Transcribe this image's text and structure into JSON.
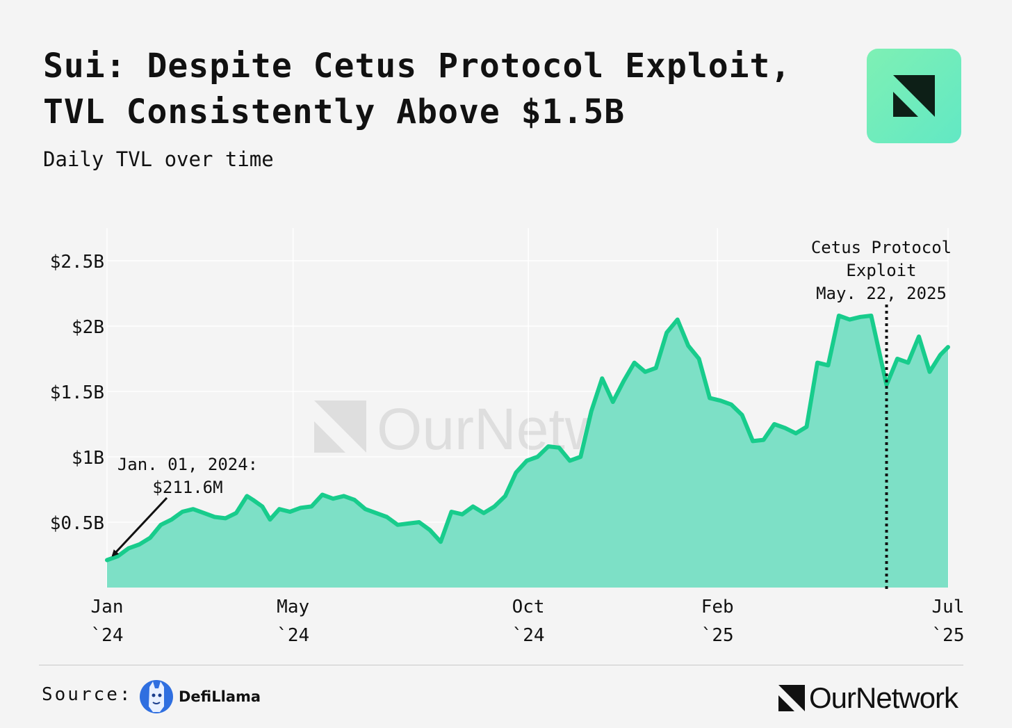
{
  "header": {
    "title_line1": "Sui: Despite Cetus Protocol Exploit,",
    "title_line2": "TVL Consistently Above $1.5B",
    "subtitle": "Daily TVL over time"
  },
  "footer": {
    "source_label": "Source:",
    "source_name": "DefiLlama",
    "brand_name": "OurNetwork"
  },
  "watermark": "OurNetwork",
  "colors": {
    "series_line": "#18cc8c",
    "series_fill": "#7de0c6",
    "background": "#f4f4f4",
    "grid": "#ffffff",
    "text": "#111111"
  },
  "chart_data": {
    "type": "area",
    "title": "Sui: Despite Cetus Protocol Exploit, TVL Consistently Above $1.5B",
    "subtitle": "Daily TVL over time",
    "xlabel": "",
    "ylabel": "",
    "x_range": [
      "2024-01-01",
      "2025-07-01"
    ],
    "ylim": [
      0,
      2.75
    ],
    "grid": true,
    "legend": "none",
    "x_ticks": [
      {
        "date": "2024-01-01",
        "line1": "Jan",
        "line2": "`24"
      },
      {
        "date": "2024-05-01",
        "line1": "May",
        "line2": "`24"
      },
      {
        "date": "2024-10-01",
        "line1": "Oct",
        "line2": "`24"
      },
      {
        "date": "2025-02-01",
        "line1": "Feb",
        "line2": "`25"
      },
      {
        "date": "2025-07-01",
        "line1": "Jul",
        "line2": "`25"
      }
    ],
    "y_ticks": [
      {
        "value": 0.5,
        "label": "$0.5B"
      },
      {
        "value": 1.0,
        "label": "$1B"
      },
      {
        "value": 1.5,
        "label": "$1.5B"
      },
      {
        "value": 2.0,
        "label": "$2B"
      },
      {
        "value": 2.5,
        "label": "$2.5B"
      }
    ],
    "series": [
      {
        "unit": "$B",
        "points": [
          [
            "2024-01-01",
            0.21
          ],
          [
            "2024-01-08",
            0.24
          ],
          [
            "2024-01-15",
            0.3
          ],
          [
            "2024-01-22",
            0.33
          ],
          [
            "2024-01-29",
            0.38
          ],
          [
            "2024-02-05",
            0.48
          ],
          [
            "2024-02-12",
            0.52
          ],
          [
            "2024-02-19",
            0.58
          ],
          [
            "2024-02-26",
            0.6
          ],
          [
            "2024-03-04",
            0.57
          ],
          [
            "2024-03-11",
            0.54
          ],
          [
            "2024-03-18",
            0.53
          ],
          [
            "2024-03-25",
            0.57
          ],
          [
            "2024-04-01",
            0.7
          ],
          [
            "2024-04-05",
            0.67
          ],
          [
            "2024-04-11",
            0.62
          ],
          [
            "2024-04-16",
            0.52
          ],
          [
            "2024-04-22",
            0.6
          ],
          [
            "2024-04-29",
            0.58
          ],
          [
            "2024-05-06",
            0.61
          ],
          [
            "2024-05-13",
            0.62
          ],
          [
            "2024-05-20",
            0.71
          ],
          [
            "2024-05-27",
            0.68
          ],
          [
            "2024-06-03",
            0.7
          ],
          [
            "2024-06-10",
            0.67
          ],
          [
            "2024-06-17",
            0.6
          ],
          [
            "2024-06-24",
            0.57
          ],
          [
            "2024-07-01",
            0.54
          ],
          [
            "2024-07-08",
            0.48
          ],
          [
            "2024-07-15",
            0.49
          ],
          [
            "2024-07-22",
            0.5
          ],
          [
            "2024-07-29",
            0.44
          ],
          [
            "2024-08-05",
            0.35
          ],
          [
            "2024-08-12",
            0.58
          ],
          [
            "2024-08-19",
            0.56
          ],
          [
            "2024-08-26",
            0.62
          ],
          [
            "2024-09-02",
            0.57
          ],
          [
            "2024-09-09",
            0.62
          ],
          [
            "2024-09-16",
            0.7
          ],
          [
            "2024-09-23",
            0.88
          ],
          [
            "2024-09-30",
            0.97
          ],
          [
            "2024-10-07",
            1.0
          ],
          [
            "2024-10-14",
            1.08
          ],
          [
            "2024-10-21",
            1.07
          ],
          [
            "2024-10-28",
            0.97
          ],
          [
            "2024-11-04",
            1.0
          ],
          [
            "2024-11-11",
            1.35
          ],
          [
            "2024-11-18",
            1.6
          ],
          [
            "2024-11-25",
            1.42
          ],
          [
            "2024-12-02",
            1.58
          ],
          [
            "2024-12-09",
            1.72
          ],
          [
            "2024-12-16",
            1.65
          ],
          [
            "2024-12-23",
            1.68
          ],
          [
            "2024-12-30",
            1.95
          ],
          [
            "2025-01-06",
            2.05
          ],
          [
            "2025-01-13",
            1.85
          ],
          [
            "2025-01-20",
            1.75
          ],
          [
            "2025-01-27",
            1.45
          ],
          [
            "2025-02-03",
            1.43
          ],
          [
            "2025-02-10",
            1.4
          ],
          [
            "2025-02-17",
            1.32
          ],
          [
            "2025-02-24",
            1.12
          ],
          [
            "2025-03-03",
            1.13
          ],
          [
            "2025-03-10",
            1.25
          ],
          [
            "2025-03-17",
            1.22
          ],
          [
            "2025-03-24",
            1.18
          ],
          [
            "2025-03-31",
            1.23
          ],
          [
            "2025-04-07",
            1.72
          ],
          [
            "2025-04-14",
            1.7
          ],
          [
            "2025-04-21",
            2.08
          ],
          [
            "2025-04-28",
            2.05
          ],
          [
            "2025-05-05",
            2.07
          ],
          [
            "2025-05-12",
            2.08
          ],
          [
            "2025-05-22",
            1.55
          ],
          [
            "2025-05-29",
            1.75
          ],
          [
            "2025-06-05",
            1.72
          ],
          [
            "2025-06-12",
            1.92
          ],
          [
            "2025-06-19",
            1.65
          ],
          [
            "2025-06-26",
            1.78
          ],
          [
            "2025-07-01",
            1.84
          ]
        ]
      }
    ],
    "annotations": [
      {
        "id": "start",
        "date": "2024-01-01",
        "value": 0.2116,
        "lines": [
          "Jan. 01, 2024:",
          "$211.6M"
        ]
      },
      {
        "id": "exploit",
        "date": "2025-05-22",
        "lines": [
          "Cetus Protocol",
          "Exploit",
          "May. 22, 2025"
        ]
      }
    ]
  }
}
